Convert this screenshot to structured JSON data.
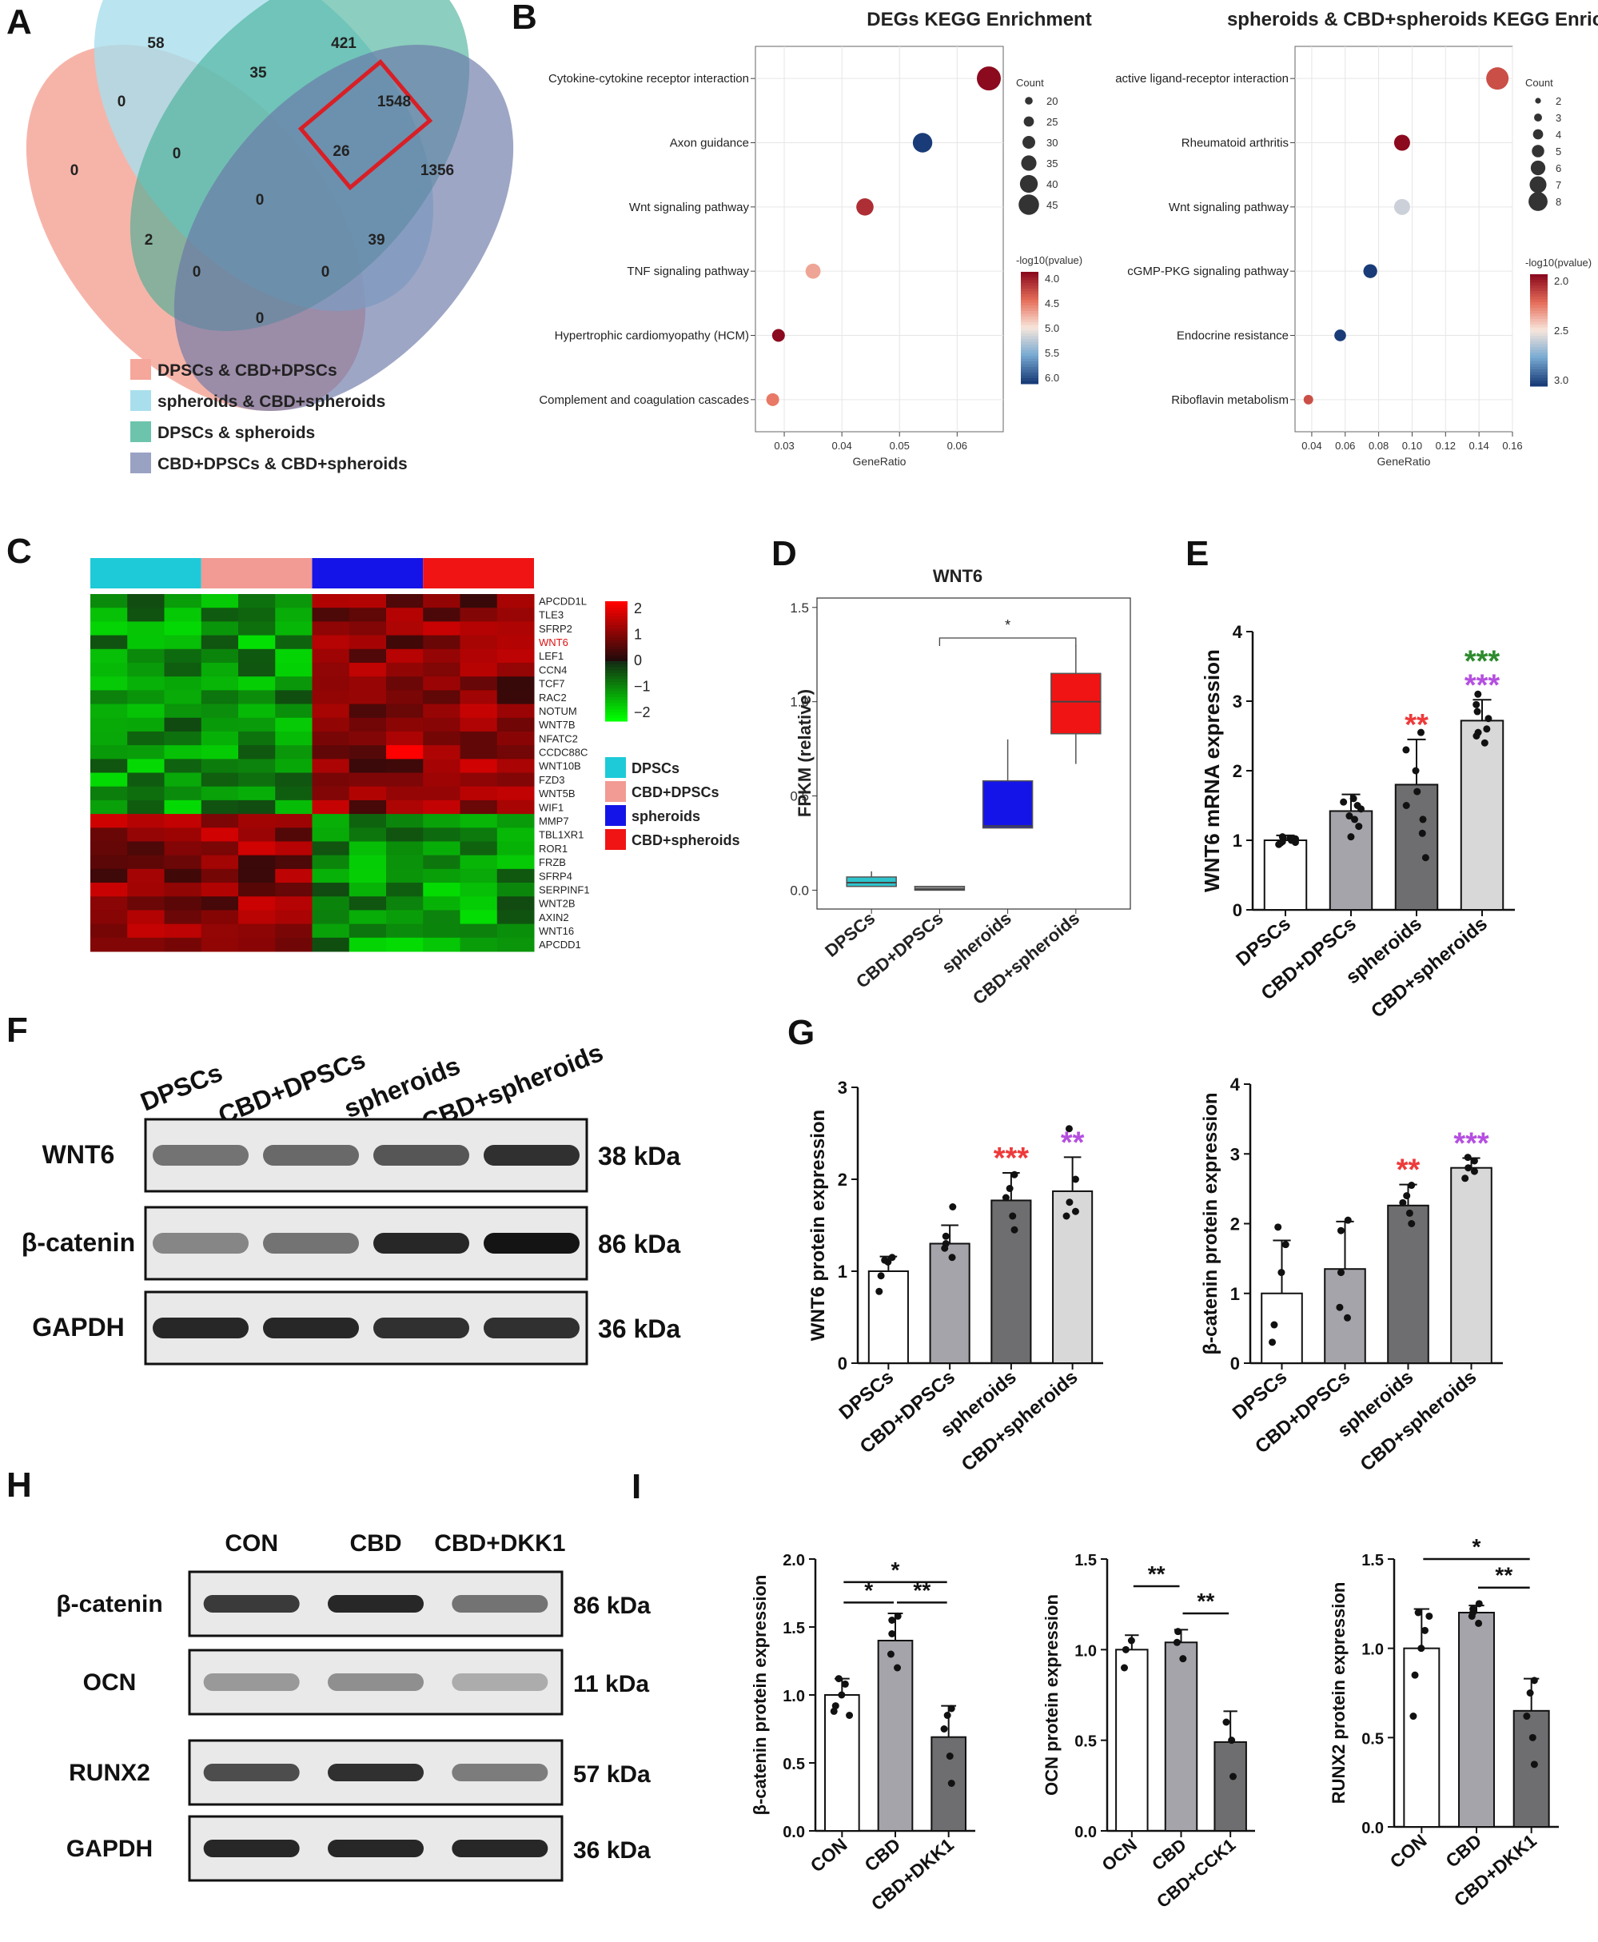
{
  "panel_labels": {
    "A": "A",
    "B": "B",
    "C": "C",
    "D": "D",
    "E": "E",
    "F": "F",
    "G": "G",
    "H": "H",
    "I": "I"
  },
  "venn": {
    "counts": [
      {
        "id": "c58",
        "text": "58"
      },
      {
        "id": "c421",
        "text": "421"
      },
      {
        "id": "c35",
        "text": "35"
      },
      {
        "id": "c0a",
        "text": "0"
      },
      {
        "id": "c1548",
        "text": "1548"
      },
      {
        "id": "c26",
        "text": "26"
      },
      {
        "id": "c0b",
        "text": "0"
      },
      {
        "id": "c1356",
        "text": "1356"
      },
      {
        "id": "c0c",
        "text": "0"
      },
      {
        "id": "c0d",
        "text": "0"
      },
      {
        "id": "c2",
        "text": "2"
      },
      {
        "id": "c39",
        "text": "39"
      },
      {
        "id": "c0e",
        "text": "0"
      },
      {
        "id": "c0f",
        "text": "0"
      },
      {
        "id": "c0g",
        "text": "0"
      }
    ],
    "legend": [
      {
        "label": "DPSCs & CBD+DPSCs",
        "color": "#f4a79a"
      },
      {
        "label": "spheroids & CBD+spheroids",
        "color": "#a9dfec"
      },
      {
        "label": "DPSCs & spheroids",
        "color": "#6dc4ad"
      },
      {
        "label": "CBD+DPSCs & CBD+spheroids",
        "color": "#9aa2c4"
      }
    ],
    "highlight_color": "#d81f26"
  },
  "chart_data": [
    {
      "id": "B1",
      "type": "scatter",
      "title": "DEGs KEGG Enrichment",
      "xlabel": "GeneRatio",
      "x_ticks": [
        "0.03",
        "0.04",
        "0.05",
        "0.06"
      ],
      "xlim": [
        0.025,
        0.068
      ],
      "categories": [
        "Cytokine-cytokine receptor interaction",
        "Axon guidance",
        "Wnt signaling pathway",
        "TNF signaling pathway",
        "Hypertrophic cardiomyopathy (HCM)",
        "Complement and coagulation cascades"
      ],
      "x": [
        0.0655,
        0.054,
        0.044,
        0.035,
        0.029,
        0.028
      ],
      "count": [
        45,
        35,
        30,
        25,
        20,
        20
      ],
      "neg_log10_p": [
        4.0,
        6.2,
        4.2,
        4.8,
        4.0,
        4.6
      ],
      "size_legend": {
        "title": "Count",
        "values": [
          "20",
          "25",
          "30",
          "35",
          "40",
          "45"
        ]
      },
      "color_legend": {
        "title": "-log10(pvalue)",
        "ticks": [
          "4.0",
          "4.5",
          "5.0",
          "5.5",
          "6.0"
        ]
      }
    },
    {
      "id": "B2",
      "type": "scatter",
      "title": "spheroids & CBD+spheroids KEGG Enrichment",
      "xlabel": "GeneRatio",
      "x_ticks": [
        "0.04",
        "0.06",
        "0.08",
        "0.10",
        "0.12",
        "0.14",
        "0.16"
      ],
      "xlim": [
        0.03,
        0.16
      ],
      "categories": [
        "active ligand-receptor interaction",
        "Rheumatoid arthritis",
        "Wnt signaling pathway",
        "cGMP-PKG signaling pathway",
        "Endocrine resistance",
        "Riboflavin metabolism"
      ],
      "x": [
        0.151,
        0.094,
        0.094,
        0.075,
        0.057,
        0.038
      ],
      "count": [
        8,
        5,
        5,
        4,
        3,
        2
      ],
      "neg_log10_p": [
        3.0,
        3.25,
        2.4,
        1.8,
        1.8,
        3.0
      ],
      "size_legend": {
        "title": "Count",
        "values": [
          "2",
          "3",
          "4",
          "5",
          "6",
          "7",
          "8"
        ]
      },
      "color_legend": {
        "title": "-log10(pvalue)",
        "ticks": [
          "2.0",
          "2.5",
          "3.0"
        ]
      }
    },
    {
      "id": "C",
      "type": "heatmap",
      "groups": [
        {
          "label": "DPSCs",
          "color": "#1ecad8"
        },
        {
          "label": "CBD+DPSCs",
          "color": "#f29a94"
        },
        {
          "label": "spheroids",
          "color": "#1414e8"
        },
        {
          "label": "CBD+spheroids",
          "color": "#f01414"
        }
      ],
      "genes": [
        "APCDD1L",
        "TLE3",
        "SFRP2",
        "WNT6",
        "LEF1",
        "CCN4",
        "TCF7",
        "RAC2",
        "NOTUM",
        "WNT7B",
        "NFATC2",
        "CCDC88C",
        "WNT10B",
        "FZD3",
        "WNT5B",
        "WIF1",
        "MMP7",
        "TBL1XR1",
        "ROR1",
        "FRZB",
        "SFRP4",
        "SERPINF1",
        "WNT2B",
        "AXIN2",
        "WNT16",
        "APCDD1"
      ],
      "highlight_gene": "WNT6",
      "scale_ticks": [
        "2",
        "1",
        "0",
        "−1",
        "−2"
      ]
    },
    {
      "id": "D",
      "type": "box",
      "title": "WNT6",
      "ylabel": "FPKM (relative)",
      "categories": [
        "DPSCs",
        "CBD+DPSCs",
        "spheroids",
        "CBD+spheroids"
      ],
      "y_ticks": [
        "0.0",
        "0.5",
        "1.0",
        "1.5"
      ],
      "ylim": [
        -0.1,
        1.55
      ],
      "boxes": [
        {
          "min": 0.02,
          "q1": 0.02,
          "median": 0.04,
          "q3": 0.07,
          "max": 0.1,
          "color": "#2ec4cc"
        },
        {
          "min": 0.0,
          "q1": 0.0,
          "median": 0.005,
          "q3": 0.02,
          "max": 0.02,
          "color": "#8a8a8a"
        },
        {
          "min": 0.33,
          "q1": 0.33,
          "median": 0.34,
          "q3": 0.58,
          "max": 0.8,
          "color": "#1414e8"
        },
        {
          "min": 0.67,
          "q1": 0.83,
          "median": 1.0,
          "q3": 1.15,
          "max": 1.3,
          "color": "#f01414"
        }
      ],
      "significance": [
        {
          "from": 1,
          "to": 3,
          "label": "*"
        }
      ]
    },
    {
      "id": "E",
      "type": "bar",
      "ylabel": "WNT6 mRNA expression",
      "categories": [
        "DPSCs",
        "CBD+DPSCs",
        "spheroids",
        "CBD+spheroids"
      ],
      "values": [
        1.0,
        1.42,
        1.8,
        2.72
      ],
      "errors": [
        0.07,
        0.24,
        0.65,
        0.3
      ],
      "points": [
        [
          0.94,
          0.97,
          1.0,
          1.02,
          1.03,
          0.98,
          1.05,
          0.96
        ],
        [
          1.05,
          1.2,
          1.35,
          1.45,
          1.6,
          1.5,
          1.3,
          1.55
        ],
        [
          0.75,
          1.1,
          1.3,
          1.7,
          2.0,
          2.3,
          2.55,
          1.5
        ],
        [
          2.4,
          2.55,
          2.6,
          2.75,
          2.85,
          2.95,
          3.1,
          2.5
        ]
      ],
      "y_ticks": [
        "0",
        "1",
        "2",
        "3",
        "4"
      ],
      "ylim": [
        0,
        4
      ],
      "bar_colors": [
        "#ffffff",
        "#a4a4aa",
        "#6e6e70",
        "#d8d8d8"
      ],
      "stars": [
        {
          "index": 2,
          "text": "**",
          "color": "#ee3a3a"
        },
        {
          "index": 3,
          "text": "***",
          "color": "#2e8b2e"
        },
        {
          "index": 3,
          "text": "***",
          "color": "#b54fe0"
        }
      ]
    },
    {
      "id": "G1",
      "type": "bar",
      "ylabel": "WNT6 protein expression",
      "categories": [
        "DPSCs",
        "CBD+DPSCs",
        "spheroids",
        "CBD+spheroids"
      ],
      "values": [
        1.0,
        1.3,
        1.77,
        1.87
      ],
      "errors": [
        0.16,
        0.2,
        0.3,
        0.37
      ],
      "points": [
        [
          0.78,
          0.95,
          1.1,
          1.15,
          1.12
        ],
        [
          1.15,
          1.25,
          1.3,
          1.38,
          1.7
        ],
        [
          1.45,
          1.6,
          1.8,
          1.9,
          2.05
        ],
        [
          1.6,
          1.65,
          1.75,
          2.0,
          2.55
        ]
      ],
      "y_ticks": [
        "0",
        "1",
        "2",
        "3"
      ],
      "ylim": [
        0,
        3
      ],
      "bar_colors": [
        "#ffffff",
        "#a4a4aa",
        "#6e6e70",
        "#d8d8d8"
      ],
      "stars": [
        {
          "index": 2,
          "text": "***",
          "color": "#ee3a3a"
        },
        {
          "index": 3,
          "text": "**",
          "color": "#b54fe0"
        }
      ]
    },
    {
      "id": "G2",
      "type": "bar",
      "ylabel": "β-catenin protein expression",
      "categories": [
        "DPSCs",
        "CBD+DPSCs",
        "spheroids",
        "CBD+spheroids"
      ],
      "values": [
        1.0,
        1.35,
        2.26,
        2.8
      ],
      "errors": [
        0.76,
        0.68,
        0.3,
        0.14
      ],
      "points": [
        [
          0.3,
          0.55,
          1.3,
          1.7,
          1.95
        ],
        [
          0.65,
          0.8,
          1.3,
          1.9,
          2.05
        ],
        [
          2.0,
          2.15,
          2.3,
          2.4,
          2.55
        ],
        [
          2.65,
          2.75,
          2.8,
          2.9,
          2.95
        ]
      ],
      "y_ticks": [
        "0",
        "1",
        "2",
        "3",
        "4"
      ],
      "ylim": [
        0,
        4
      ],
      "bar_colors": [
        "#ffffff",
        "#a4a4aa",
        "#6e6e70",
        "#d8d8d8"
      ],
      "stars": [
        {
          "index": 2,
          "text": "**",
          "color": "#ee3a3a"
        },
        {
          "index": 3,
          "text": "***",
          "color": "#b54fe0"
        }
      ]
    },
    {
      "id": "I1",
      "type": "bar",
      "ylabel": "β-catenin protein expression",
      "categories": [
        "CON",
        "CBD",
        "CBD+DKK1"
      ],
      "values": [
        1.0,
        1.4,
        0.69
      ],
      "errors": [
        0.12,
        0.2,
        0.23
      ],
      "points": [
        [
          0.88,
          0.92,
          1.0,
          1.08,
          1.12,
          0.85
        ],
        [
          1.2,
          1.3,
          1.45,
          1.55,
          1.58
        ],
        [
          0.35,
          0.55,
          0.75,
          0.85,
          0.9
        ]
      ],
      "y_ticks": [
        "0.0",
        "0.5",
        "1.0",
        "1.5",
        "2.0"
      ],
      "ylim": [
        0,
        2
      ],
      "bar_colors": [
        "#ffffff",
        "#a4a4aa",
        "#6e6e70"
      ],
      "brackets": [
        {
          "from": 0,
          "to": 1,
          "level": 1.68,
          "label": "*"
        },
        {
          "from": 1,
          "to": 2,
          "level": 1.68,
          "label": "**"
        },
        {
          "from": 0,
          "to": 2,
          "level": 1.83,
          "label": "*"
        }
      ]
    },
    {
      "id": "I2",
      "type": "bar",
      "ylabel": "OCN protein expression",
      "categories": [
        "OCN",
        "CBD",
        "CBD+CCK1"
      ],
      "values": [
        1.0,
        1.04,
        0.49
      ],
      "errors": [
        0.08,
        0.07,
        0.17
      ],
      "points": [
        [
          0.9,
          1.0,
          1.05
        ],
        [
          0.95,
          1.04,
          1.1
        ],
        [
          0.3,
          0.5,
          0.6
        ]
      ],
      "y_ticks": [
        "0.0",
        "0.5",
        "1.0",
        "1.5"
      ],
      "ylim": [
        0,
        1.5
      ],
      "bar_colors": [
        "#ffffff",
        "#a4a4aa",
        "#6e6e70"
      ],
      "brackets": [
        {
          "from": 0,
          "to": 1,
          "level": 1.35,
          "label": "**"
        },
        {
          "from": 1,
          "to": 2,
          "level": 1.2,
          "label": "**"
        }
      ]
    },
    {
      "id": "I3",
      "type": "bar",
      "ylabel": "RUNX2 protein expression",
      "categories": [
        "CON",
        "CBD",
        "CBD+DKK1"
      ],
      "values": [
        1.0,
        1.2,
        0.65
      ],
      "errors": [
        0.22,
        0.04,
        0.18
      ],
      "points": [
        [
          0.62,
          0.85,
          1.0,
          1.1,
          1.2,
          1.18
        ],
        [
          1.14,
          1.18,
          1.2,
          1.22,
          1.25
        ],
        [
          0.35,
          0.5,
          0.62,
          0.75,
          0.82
        ]
      ],
      "y_ticks": [
        "0.0",
        "0.5",
        "1.0",
        "1.5"
      ],
      "ylim": [
        0,
        1.5
      ],
      "bar_colors": [
        "#ffffff",
        "#a4a4aa",
        "#6e6e70"
      ],
      "brackets": [
        {
          "from": 1,
          "to": 2,
          "level": 1.34,
          "label": "**"
        },
        {
          "from": 0,
          "to": 2,
          "level": 1.5,
          "label": "*"
        }
      ]
    }
  ],
  "blot_F": {
    "lanes": [
      "DPSCs",
      "CBD+DPSCs",
      "spheroids",
      "CBD+spheroids"
    ],
    "rows": [
      {
        "label": "WNT6",
        "kda": "38 kDa",
        "intensity": [
          0.45,
          0.5,
          0.6,
          0.8
        ]
      },
      {
        "label": "β-catenin",
        "kda": "86 kDa",
        "intensity": [
          0.35,
          0.45,
          0.85,
          0.95
        ]
      },
      {
        "label": "GAPDH",
        "kda": "36 kDa",
        "intensity": [
          0.85,
          0.85,
          0.8,
          0.8
        ]
      }
    ]
  },
  "blot_H": {
    "lanes": [
      "CON",
      "CBD",
      "CBD+DKK1"
    ],
    "rows": [
      {
        "label": "β-catenin",
        "kda": "86 kDa",
        "intensity": [
          0.75,
          0.85,
          0.45
        ]
      },
      {
        "label": "OCN",
        "kda": "11 kDa",
        "intensity": [
          0.25,
          0.3,
          0.15
        ]
      },
      {
        "label": "RUNX2",
        "kda": "57 kDa",
        "intensity": [
          0.65,
          0.8,
          0.4
        ]
      },
      {
        "label": "GAPDH",
        "kda": "36 kDa",
        "intensity": [
          0.85,
          0.85,
          0.85
        ]
      }
    ]
  }
}
